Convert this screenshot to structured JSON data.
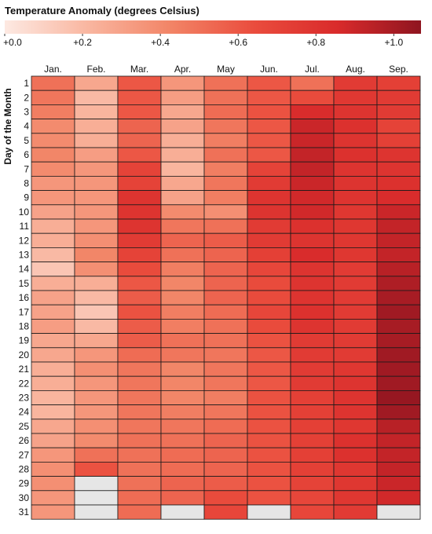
{
  "chart_data": {
    "type": "heatmap",
    "title": "Temperature Anomaly (degrees Celsius)",
    "ylabel": "Day of the Month",
    "x_categories": [
      "Jan.",
      "Feb.",
      "Mar.",
      "Apr.",
      "May",
      "Jun.",
      "Jul.",
      "Aug.",
      "Sep."
    ],
    "y_categories": [
      "1",
      "2",
      "3",
      "4",
      "5",
      "6",
      "7",
      "8",
      "9",
      "10",
      "11",
      "12",
      "13",
      "14",
      "15",
      "16",
      "17",
      "18",
      "19",
      "20",
      "21",
      "22",
      "23",
      "24",
      "25",
      "26",
      "27",
      "28",
      "29",
      "30",
      "31"
    ],
    "colorbar": {
      "min": 0.0,
      "max": 1.07,
      "ticks": [
        0.0,
        0.2,
        0.4,
        0.6,
        0.8,
        1.0
      ],
      "tick_labels": [
        "+0.0",
        "+0.2",
        "+0.4",
        "+0.6",
        "+0.8",
        "+1.0"
      ],
      "colors": [
        "#fde9e2",
        "#f9b6a0",
        "#f28466",
        "#ea4c3d",
        "#d92b2b",
        "#8f1520"
      ]
    },
    "missing_color": "#e6e6e6",
    "values": [
      [
        0.5,
        0.28,
        0.6,
        0.35,
        0.5,
        0.6,
        0.5,
        0.75,
        0.72
      ],
      [
        0.48,
        0.2,
        0.6,
        0.32,
        0.5,
        0.6,
        0.65,
        0.77,
        0.75
      ],
      [
        0.45,
        0.22,
        0.6,
        0.28,
        0.52,
        0.62,
        0.85,
        0.8,
        0.75
      ],
      [
        0.4,
        0.25,
        0.55,
        0.3,
        0.48,
        0.6,
        0.9,
        0.82,
        0.7
      ],
      [
        0.4,
        0.25,
        0.55,
        0.25,
        0.45,
        0.6,
        0.9,
        0.8,
        0.72
      ],
      [
        0.42,
        0.32,
        0.6,
        0.25,
        0.5,
        0.6,
        0.92,
        0.82,
        0.8
      ],
      [
        0.4,
        0.35,
        0.7,
        0.22,
        0.45,
        0.7,
        0.92,
        0.8,
        0.8
      ],
      [
        0.35,
        0.35,
        0.7,
        0.28,
        0.48,
        0.75,
        0.9,
        0.8,
        0.82
      ],
      [
        0.35,
        0.35,
        0.8,
        0.3,
        0.45,
        0.8,
        0.88,
        0.8,
        0.85
      ],
      [
        0.3,
        0.35,
        0.8,
        0.4,
        0.38,
        0.8,
        0.88,
        0.78,
        0.9
      ],
      [
        0.25,
        0.35,
        0.8,
        0.48,
        0.5,
        0.75,
        0.82,
        0.78,
        0.92
      ],
      [
        0.25,
        0.38,
        0.75,
        0.55,
        0.58,
        0.75,
        0.8,
        0.78,
        0.92
      ],
      [
        0.2,
        0.42,
        0.7,
        0.5,
        0.55,
        0.72,
        0.85,
        0.78,
        0.92
      ],
      [
        0.15,
        0.38,
        0.65,
        0.45,
        0.55,
        0.68,
        0.8,
        0.75,
        0.95
      ],
      [
        0.25,
        0.25,
        0.6,
        0.42,
        0.55,
        0.65,
        0.8,
        0.75,
        0.98
      ],
      [
        0.3,
        0.2,
        0.58,
        0.42,
        0.55,
        0.65,
        0.8,
        0.75,
        1.0
      ],
      [
        0.3,
        0.15,
        0.62,
        0.45,
        0.52,
        0.68,
        0.82,
        0.75,
        1.02
      ],
      [
        0.32,
        0.2,
        0.58,
        0.45,
        0.5,
        0.65,
        0.8,
        0.75,
        1.0
      ],
      [
        0.28,
        0.28,
        0.58,
        0.5,
        0.5,
        0.62,
        0.75,
        0.75,
        1.0
      ],
      [
        0.28,
        0.35,
        0.52,
        0.48,
        0.48,
        0.6,
        0.75,
        0.75,
        1.02
      ],
      [
        0.25,
        0.38,
        0.48,
        0.42,
        0.48,
        0.6,
        0.75,
        0.78,
        1.02
      ],
      [
        0.25,
        0.35,
        0.48,
        0.42,
        0.48,
        0.6,
        0.75,
        0.8,
        1.02
      ],
      [
        0.22,
        0.35,
        0.48,
        0.42,
        0.45,
        0.62,
        0.72,
        0.8,
        1.05
      ],
      [
        0.22,
        0.35,
        0.48,
        0.45,
        0.48,
        0.62,
        0.72,
        0.8,
        1.02
      ],
      [
        0.28,
        0.38,
        0.48,
        0.48,
        0.52,
        0.62,
        0.72,
        0.78,
        0.95
      ],
      [
        0.3,
        0.4,
        0.5,
        0.5,
        0.55,
        0.62,
        0.72,
        0.82,
        0.92
      ],
      [
        0.35,
        0.5,
        0.5,
        0.52,
        0.55,
        0.62,
        0.72,
        0.82,
        0.92
      ],
      [
        0.38,
        0.62,
        0.5,
        0.52,
        0.55,
        0.62,
        0.72,
        0.78,
        0.92
      ],
      [
        0.38,
        null,
        0.5,
        0.55,
        0.58,
        0.62,
        0.7,
        0.78,
        0.9
      ],
      [
        0.35,
        null,
        0.52,
        0.55,
        0.65,
        0.62,
        0.68,
        0.78,
        0.88
      ],
      [
        0.35,
        null,
        0.52,
        null,
        0.68,
        null,
        0.68,
        0.75,
        null
      ]
    ]
  }
}
